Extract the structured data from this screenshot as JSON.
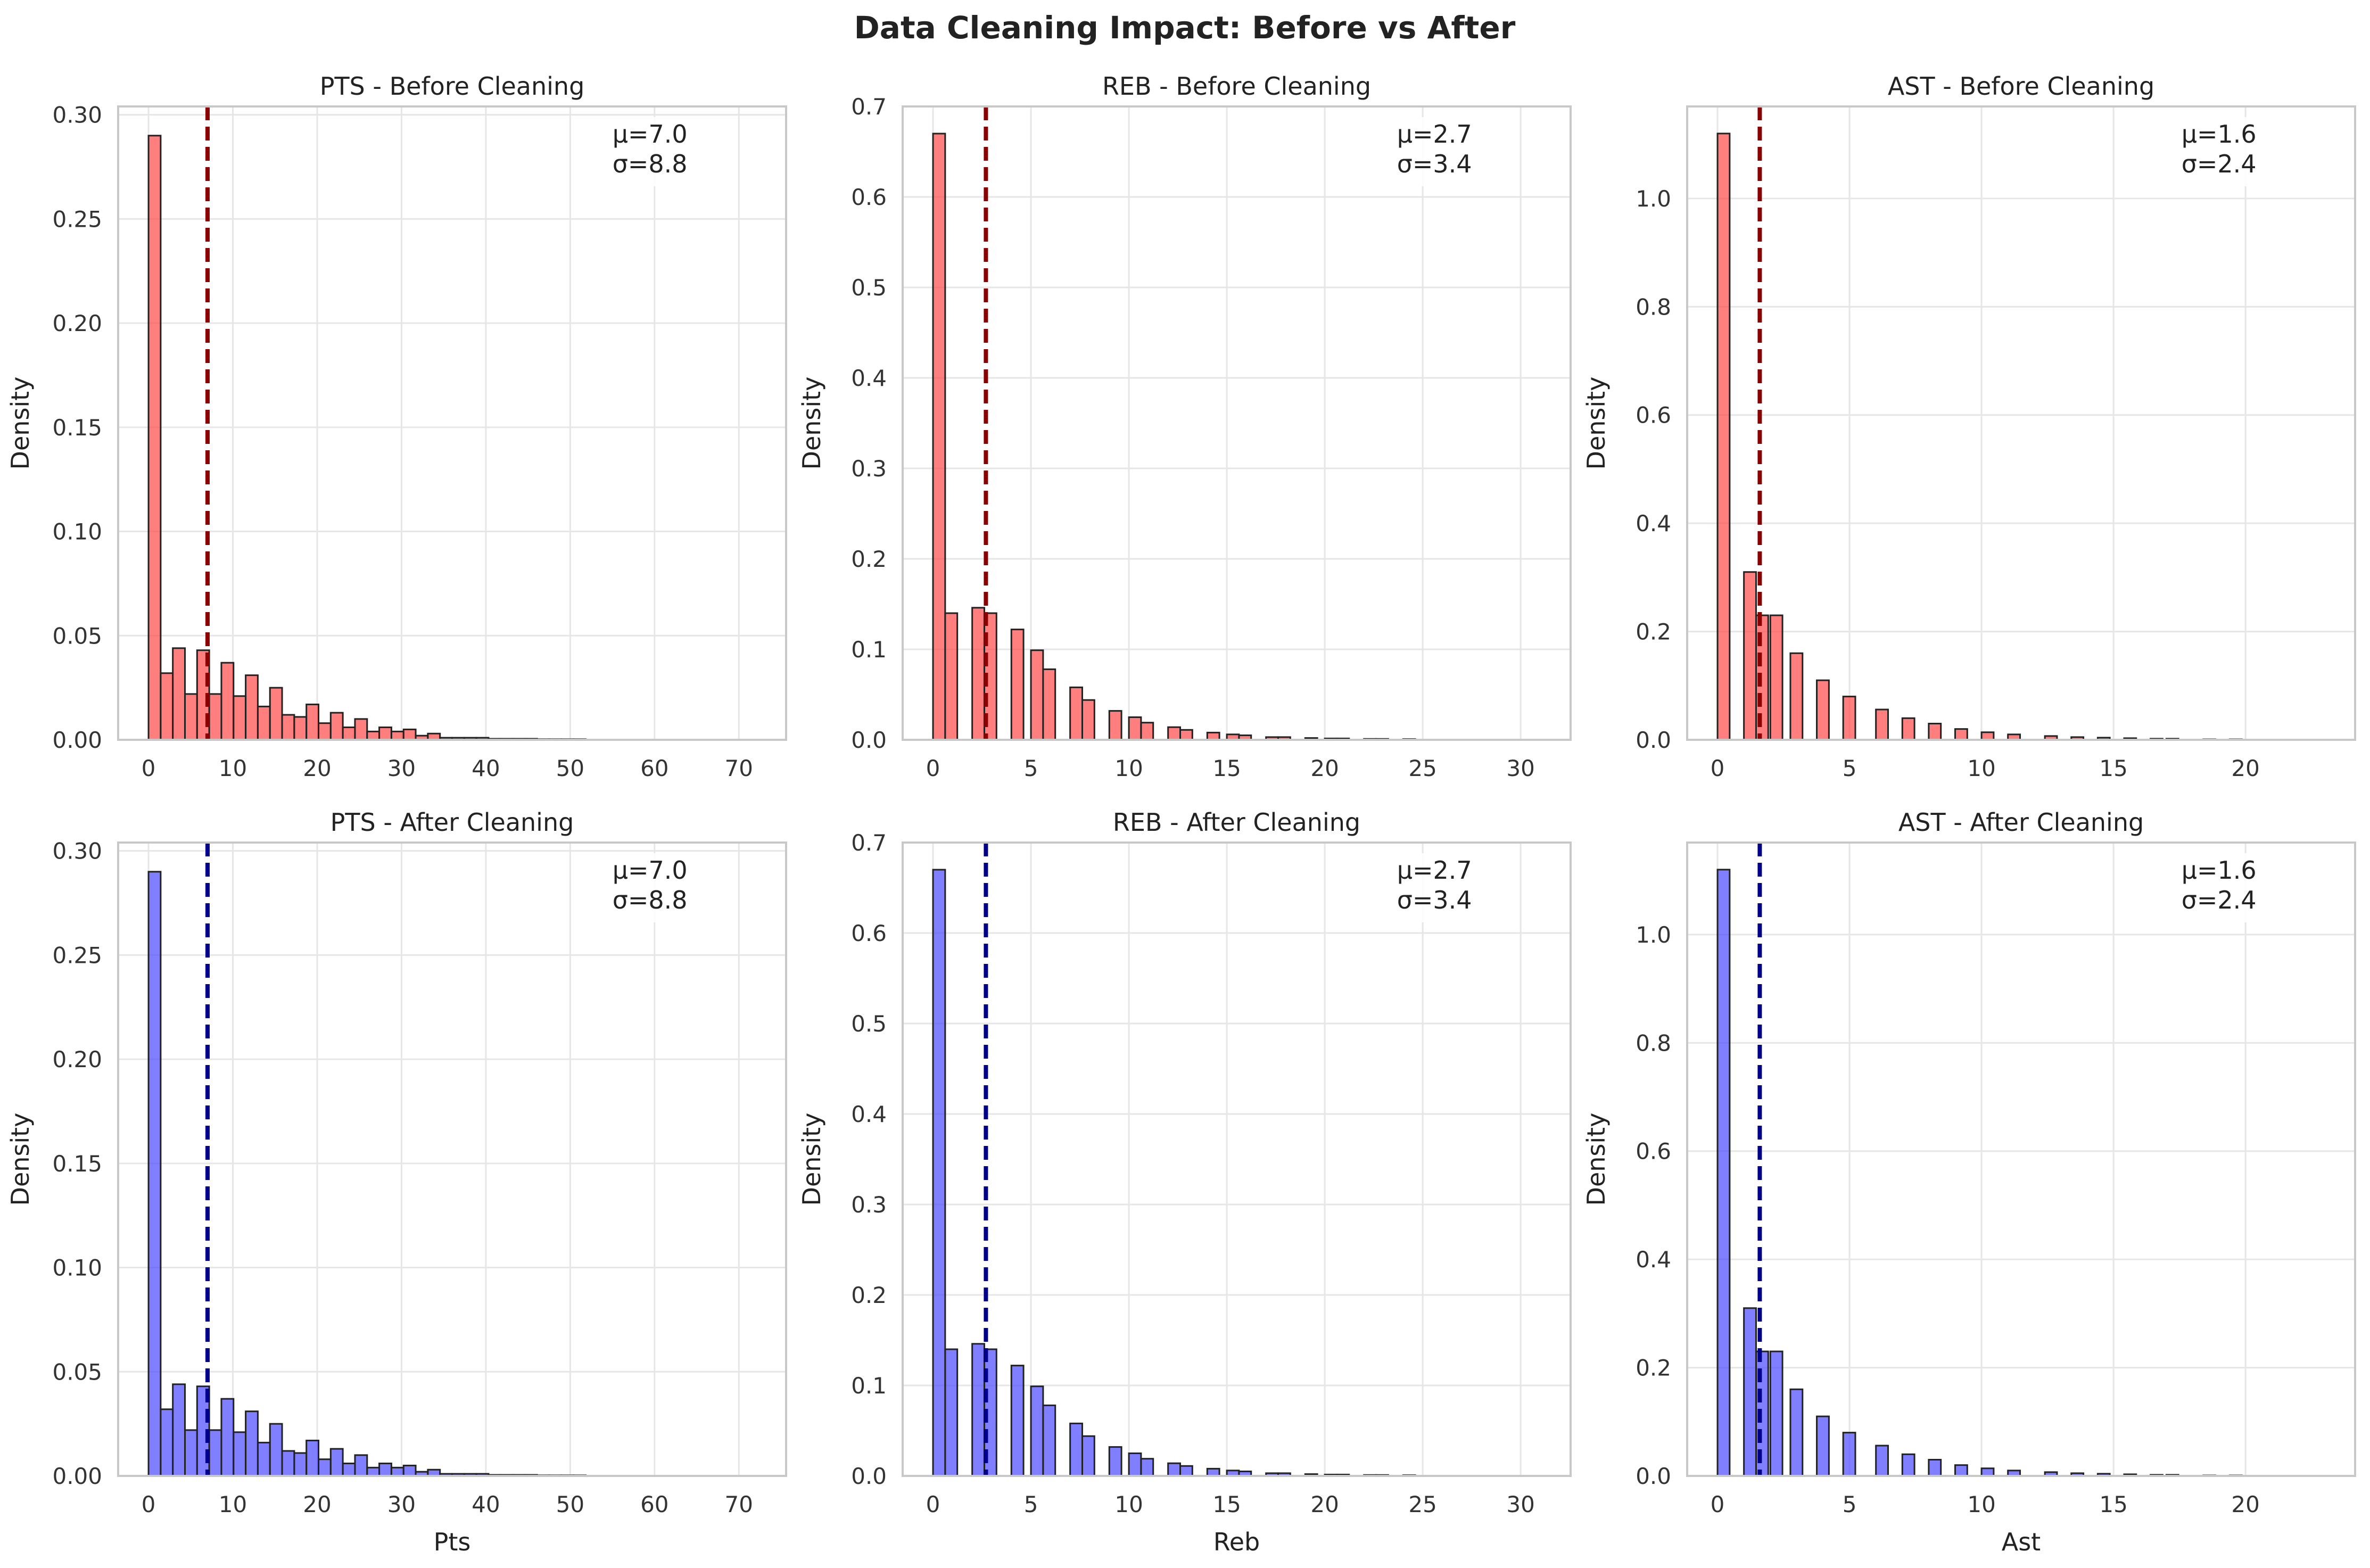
{
  "figure_title": "Data Cleaning Impact: Before vs After",
  "colors": {
    "before_bar": "#ff4d4d",
    "before_line": "#8b0000",
    "after_bar": "#4d4dff",
    "after_line": "#00008b",
    "edge": "#222222",
    "grid": "#e6e6e6",
    "frame": "#c8c8c8"
  },
  "chart_data": [
    {
      "type": "bar",
      "title": "PTS - Before Cleaning",
      "xlabel": "",
      "ylabel": "Density",
      "variant": "before",
      "xlim": [
        -3.6,
        75.6
      ],
      "ylim": [
        0,
        0.304
      ],
      "xticks": [
        0,
        10,
        20,
        30,
        40,
        50,
        60,
        70
      ],
      "yticks": [
        0.0,
        0.05,
        0.1,
        0.15,
        0.2,
        0.25,
        0.3
      ],
      "ytick_labels": [
        "0.00",
        "0.05",
        "0.10",
        "0.15",
        "0.20",
        "0.25",
        "0.30"
      ],
      "bin_width": 1.44,
      "bin_start": 0,
      "values": [
        0.29,
        0.032,
        0.044,
        0.022,
        0.043,
        0.022,
        0.037,
        0.021,
        0.031,
        0.016,
        0.025,
        0.012,
        0.011,
        0.017,
        0.008,
        0.013,
        0.006,
        0.01,
        0.004,
        0.006,
        0.004,
        0.005,
        0.002,
        0.003,
        0.001,
        0.001,
        0.001,
        0.001,
        0.0005,
        0.0005,
        0.0005,
        0.0005,
        0.0003,
        0.0003,
        0.0003,
        0.0003
      ],
      "mean": 7.0,
      "stats": [
        "μ=7.0",
        "σ=8.8"
      ]
    },
    {
      "type": "bar",
      "title": "REB - Before Cleaning",
      "xlabel": "",
      "ylabel": "Density",
      "variant": "before",
      "xlim": [
        -1.55,
        32.55
      ],
      "ylim": [
        0,
        0.7
      ],
      "xticks": [
        0,
        5,
        10,
        15,
        20,
        25,
        30
      ],
      "yticks": [
        0.0,
        0.1,
        0.2,
        0.3,
        0.4,
        0.5,
        0.6,
        0.7
      ],
      "ytick_labels": [
        "0.0",
        "0.1",
        "0.2",
        "0.3",
        "0.4",
        "0.5",
        "0.6",
        "0.7"
      ],
      "bar_width": 0.62,
      "bars": [
        [
          0,
          0.67
        ],
        [
          0.62,
          0.14
        ],
        [
          2.0,
          0.146
        ],
        [
          2.62,
          0.14
        ],
        [
          4.0,
          0.122
        ],
        [
          5.0,
          0.099
        ],
        [
          5.62,
          0.078
        ],
        [
          7.0,
          0.058
        ],
        [
          7.62,
          0.044
        ],
        [
          9.0,
          0.032
        ],
        [
          10.0,
          0.025
        ],
        [
          10.62,
          0.019
        ],
        [
          12.0,
          0.014
        ],
        [
          12.62,
          0.011
        ],
        [
          14.0,
          0.008
        ],
        [
          15.0,
          0.006
        ],
        [
          15.62,
          0.005
        ],
        [
          17.0,
          0.003
        ],
        [
          17.62,
          0.003
        ],
        [
          19.0,
          0.002
        ],
        [
          20.0,
          0.0015
        ],
        [
          20.62,
          0.0015
        ],
        [
          22.0,
          0.001
        ],
        [
          22.62,
          0.001
        ],
        [
          24.0,
          0.0008
        ]
      ],
      "mean": 2.7,
      "stats": [
        "μ=2.7",
        "σ=3.4"
      ]
    },
    {
      "type": "bar",
      "title": "AST - Before Cleaning",
      "xlabel": "",
      "ylabel": "Density",
      "variant": "before",
      "xlim": [
        -1.15,
        24.15
      ],
      "ylim": [
        0,
        1.17
      ],
      "xticks": [
        0,
        5,
        10,
        15,
        20
      ],
      "yticks": [
        0.0,
        0.2,
        0.4,
        0.6,
        0.8,
        1.0
      ],
      "ytick_labels": [
        "0.0",
        "0.2",
        "0.4",
        "0.6",
        "0.8",
        "1.0"
      ],
      "bar_width": 0.46,
      "bars": [
        [
          0,
          1.12
        ],
        [
          1.0,
          0.31
        ],
        [
          1.46,
          0.23
        ],
        [
          2.0,
          0.23
        ],
        [
          2.76,
          0.16
        ],
        [
          3.76,
          0.11
        ],
        [
          4.76,
          0.08
        ],
        [
          6.0,
          0.056
        ],
        [
          7.0,
          0.04
        ],
        [
          8.0,
          0.03
        ],
        [
          9.0,
          0.02
        ],
        [
          10.0,
          0.014
        ],
        [
          11.0,
          0.01
        ],
        [
          12.4,
          0.007
        ],
        [
          13.4,
          0.005
        ],
        [
          14.4,
          0.004
        ],
        [
          15.4,
          0.003
        ],
        [
          16.4,
          0.002
        ],
        [
          17.0,
          0.002
        ],
        [
          18.4,
          0.001
        ],
        [
          19.4,
          0.001
        ]
      ],
      "mean": 1.6,
      "stats": [
        "μ=1.6",
        "σ=2.4"
      ]
    },
    {
      "type": "bar",
      "title": "PTS - After Cleaning",
      "xlabel": "Pts",
      "ylabel": "Density",
      "variant": "after",
      "xlim": [
        -3.6,
        75.6
      ],
      "ylim": [
        0,
        0.304
      ],
      "xticks": [
        0,
        10,
        20,
        30,
        40,
        50,
        60,
        70
      ],
      "yticks": [
        0.0,
        0.05,
        0.1,
        0.15,
        0.2,
        0.25,
        0.3
      ],
      "ytick_labels": [
        "0.00",
        "0.05",
        "0.10",
        "0.15",
        "0.20",
        "0.25",
        "0.30"
      ],
      "bin_width": 1.44,
      "bin_start": 0,
      "values": [
        0.29,
        0.032,
        0.044,
        0.022,
        0.043,
        0.022,
        0.037,
        0.021,
        0.031,
        0.016,
        0.025,
        0.012,
        0.011,
        0.017,
        0.008,
        0.013,
        0.006,
        0.01,
        0.004,
        0.006,
        0.004,
        0.005,
        0.002,
        0.003,
        0.001,
        0.001,
        0.001,
        0.001,
        0.0005,
        0.0005,
        0.0005,
        0.0005,
        0.0003,
        0.0003,
        0.0003,
        0.0003
      ],
      "mean": 7.0,
      "stats": [
        "μ=7.0",
        "σ=8.8"
      ]
    },
    {
      "type": "bar",
      "title": "REB - After Cleaning",
      "xlabel": "Reb",
      "ylabel": "Density",
      "variant": "after",
      "xlim": [
        -1.55,
        32.55
      ],
      "ylim": [
        0,
        0.7
      ],
      "xticks": [
        0,
        5,
        10,
        15,
        20,
        25,
        30
      ],
      "yticks": [
        0.0,
        0.1,
        0.2,
        0.3,
        0.4,
        0.5,
        0.6,
        0.7
      ],
      "ytick_labels": [
        "0.0",
        "0.1",
        "0.2",
        "0.3",
        "0.4",
        "0.5",
        "0.6",
        "0.7"
      ],
      "bar_width": 0.62,
      "bars": [
        [
          0,
          0.67
        ],
        [
          0.62,
          0.14
        ],
        [
          2.0,
          0.146
        ],
        [
          2.62,
          0.14
        ],
        [
          4.0,
          0.122
        ],
        [
          5.0,
          0.099
        ],
        [
          5.62,
          0.078
        ],
        [
          7.0,
          0.058
        ],
        [
          7.62,
          0.044
        ],
        [
          9.0,
          0.032
        ],
        [
          10.0,
          0.025
        ],
        [
          10.62,
          0.019
        ],
        [
          12.0,
          0.014
        ],
        [
          12.62,
          0.011
        ],
        [
          14.0,
          0.008
        ],
        [
          15.0,
          0.006
        ],
        [
          15.62,
          0.005
        ],
        [
          17.0,
          0.003
        ],
        [
          17.62,
          0.003
        ],
        [
          19.0,
          0.002
        ],
        [
          20.0,
          0.0015
        ],
        [
          20.62,
          0.0015
        ],
        [
          22.0,
          0.001
        ],
        [
          22.62,
          0.001
        ],
        [
          24.0,
          0.0008
        ]
      ],
      "mean": 2.7,
      "stats": [
        "μ=2.7",
        "σ=3.4"
      ]
    },
    {
      "type": "bar",
      "title": "AST - After Cleaning",
      "xlabel": "Ast",
      "ylabel": "Density",
      "variant": "after",
      "xlim": [
        -1.15,
        24.15
      ],
      "ylim": [
        0,
        1.17
      ],
      "xticks": [
        0,
        5,
        10,
        15,
        20
      ],
      "yticks": [
        0.0,
        0.2,
        0.4,
        0.6,
        0.8,
        1.0
      ],
      "ytick_labels": [
        "0.0",
        "0.2",
        "0.4",
        "0.6",
        "0.8",
        "1.0"
      ],
      "bar_width": 0.46,
      "bars": [
        [
          0,
          1.12
        ],
        [
          1.0,
          0.31
        ],
        [
          1.46,
          0.23
        ],
        [
          2.0,
          0.23
        ],
        [
          2.76,
          0.16
        ],
        [
          3.76,
          0.11
        ],
        [
          4.76,
          0.08
        ],
        [
          6.0,
          0.056
        ],
        [
          7.0,
          0.04
        ],
        [
          8.0,
          0.03
        ],
        [
          9.0,
          0.02
        ],
        [
          10.0,
          0.014
        ],
        [
          11.0,
          0.01
        ],
        [
          12.4,
          0.007
        ],
        [
          13.4,
          0.005
        ],
        [
          14.4,
          0.004
        ],
        [
          15.4,
          0.003
        ],
        [
          16.4,
          0.002
        ],
        [
          17.0,
          0.002
        ],
        [
          18.4,
          0.001
        ],
        [
          19.4,
          0.001
        ]
      ],
      "mean": 1.6,
      "stats": [
        "μ=1.6",
        "σ=2.4"
      ]
    }
  ]
}
